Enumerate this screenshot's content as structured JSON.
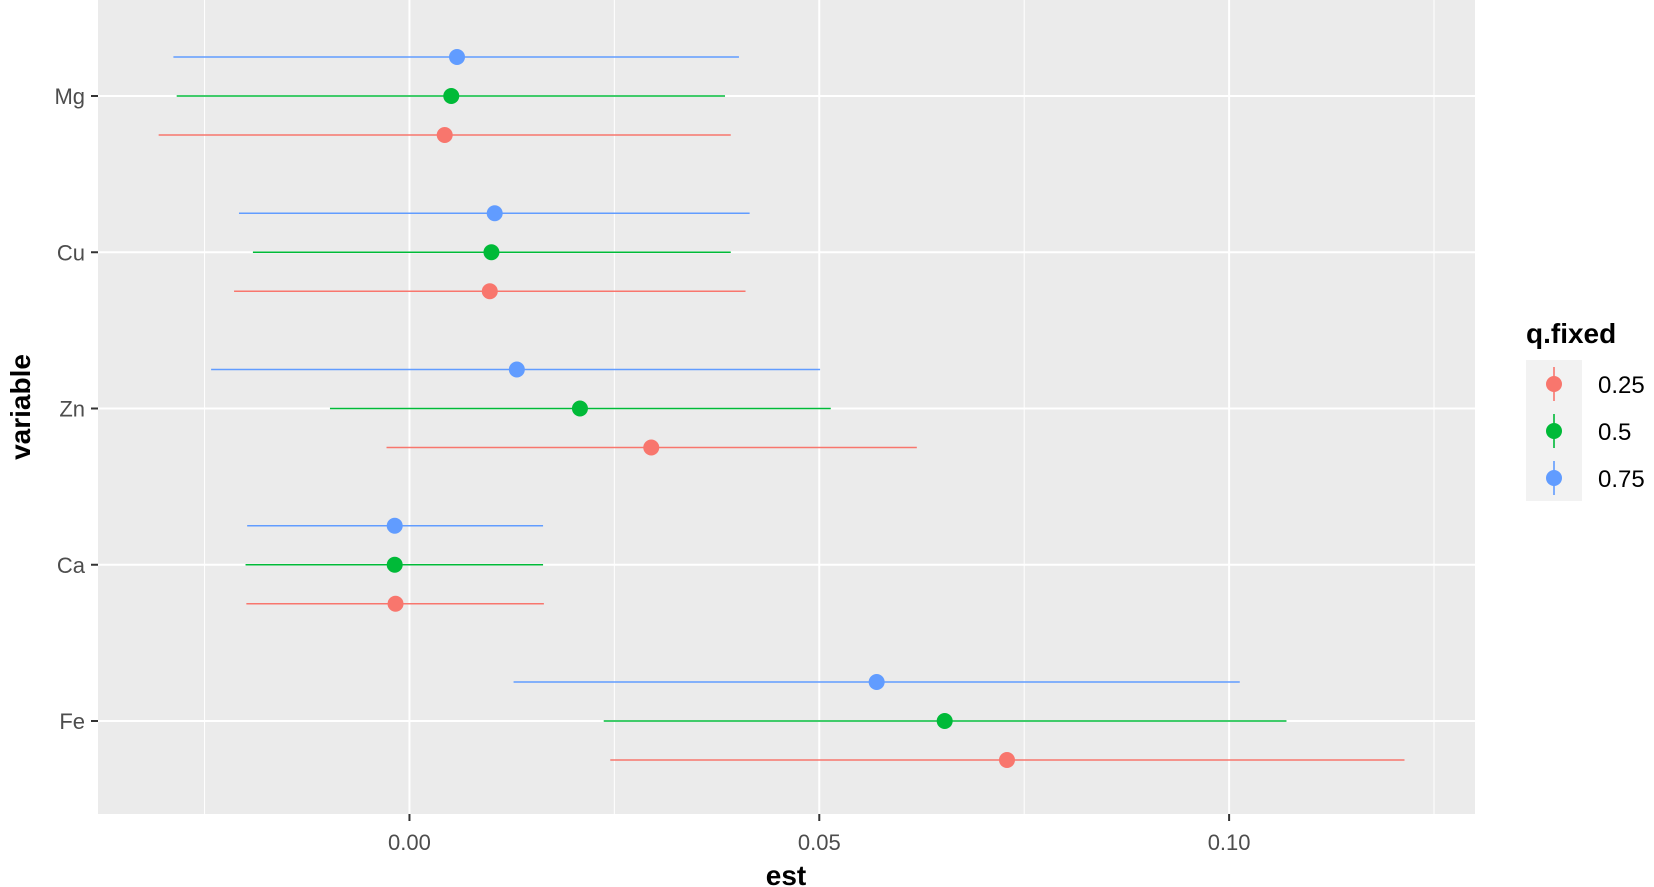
{
  "chart_data": {
    "type": "scatter",
    "subtype": "pointrange",
    "title": "",
    "xlabel": "est",
    "ylabel": "variable",
    "xlim": [
      -0.038,
      0.13
    ],
    "x_ticks": [
      0.0,
      0.05,
      0.1
    ],
    "x_tick_labels": [
      "0.00",
      "0.05",
      "0.10"
    ],
    "categories": [
      "Mg",
      "Cu",
      "Zn",
      "Ca",
      "Fe"
    ],
    "grid": true,
    "legend": {
      "title": "q.fixed",
      "position": "right",
      "entries": [
        "0.25",
        "0.5",
        "0.75"
      ]
    },
    "colors": {
      "0.25": "#F8766D",
      "0.5": "#00BA38",
      "0.75": "#619CFF",
      "panel": "#EBEBEB",
      "grid": "#FFFFFF"
    },
    "series": [
      {
        "name": "0.25",
        "points": [
          {
            "variable": "Mg",
            "est": 0.0043,
            "lo": -0.0306,
            "hi": 0.0392
          },
          {
            "variable": "Cu",
            "est": 0.0098,
            "lo": -0.0214,
            "hi": 0.041
          },
          {
            "variable": "Zn",
            "est": 0.0295,
            "lo": -0.0028,
            "hi": 0.0619
          },
          {
            "variable": "Ca",
            "est": -0.0017,
            "lo": -0.0199,
            "hi": 0.0164
          },
          {
            "variable": "Fe",
            "est": 0.0729,
            "lo": 0.0245,
            "hi": 0.1214
          }
        ]
      },
      {
        "name": "0.5",
        "points": [
          {
            "variable": "Mg",
            "est": 0.0051,
            "lo": -0.0284,
            "hi": 0.0385
          },
          {
            "variable": "Cu",
            "est": 0.01,
            "lo": -0.0191,
            "hi": 0.0392
          },
          {
            "variable": "Zn",
            "est": 0.0208,
            "lo": -0.0097,
            "hi": 0.0514
          },
          {
            "variable": "Ca",
            "est": -0.0018,
            "lo": -0.02,
            "hi": 0.0163
          },
          {
            "variable": "Fe",
            "est": 0.0653,
            "lo": 0.0237,
            "hi": 0.107
          }
        ]
      },
      {
        "name": "0.75",
        "points": [
          {
            "variable": "Mg",
            "est": 0.0058,
            "lo": -0.0288,
            "hi": 0.0402
          },
          {
            "variable": "Cu",
            "est": 0.0104,
            "lo": -0.0208,
            "hi": 0.0415
          },
          {
            "variable": "Zn",
            "est": 0.0131,
            "lo": -0.0242,
            "hi": 0.0501
          },
          {
            "variable": "Ca",
            "est": -0.0018,
            "lo": -0.0198,
            "hi": 0.0163
          },
          {
            "variable": "Fe",
            "est": 0.057,
            "lo": 0.0127,
            "hi": 0.1013
          }
        ]
      }
    ]
  }
}
